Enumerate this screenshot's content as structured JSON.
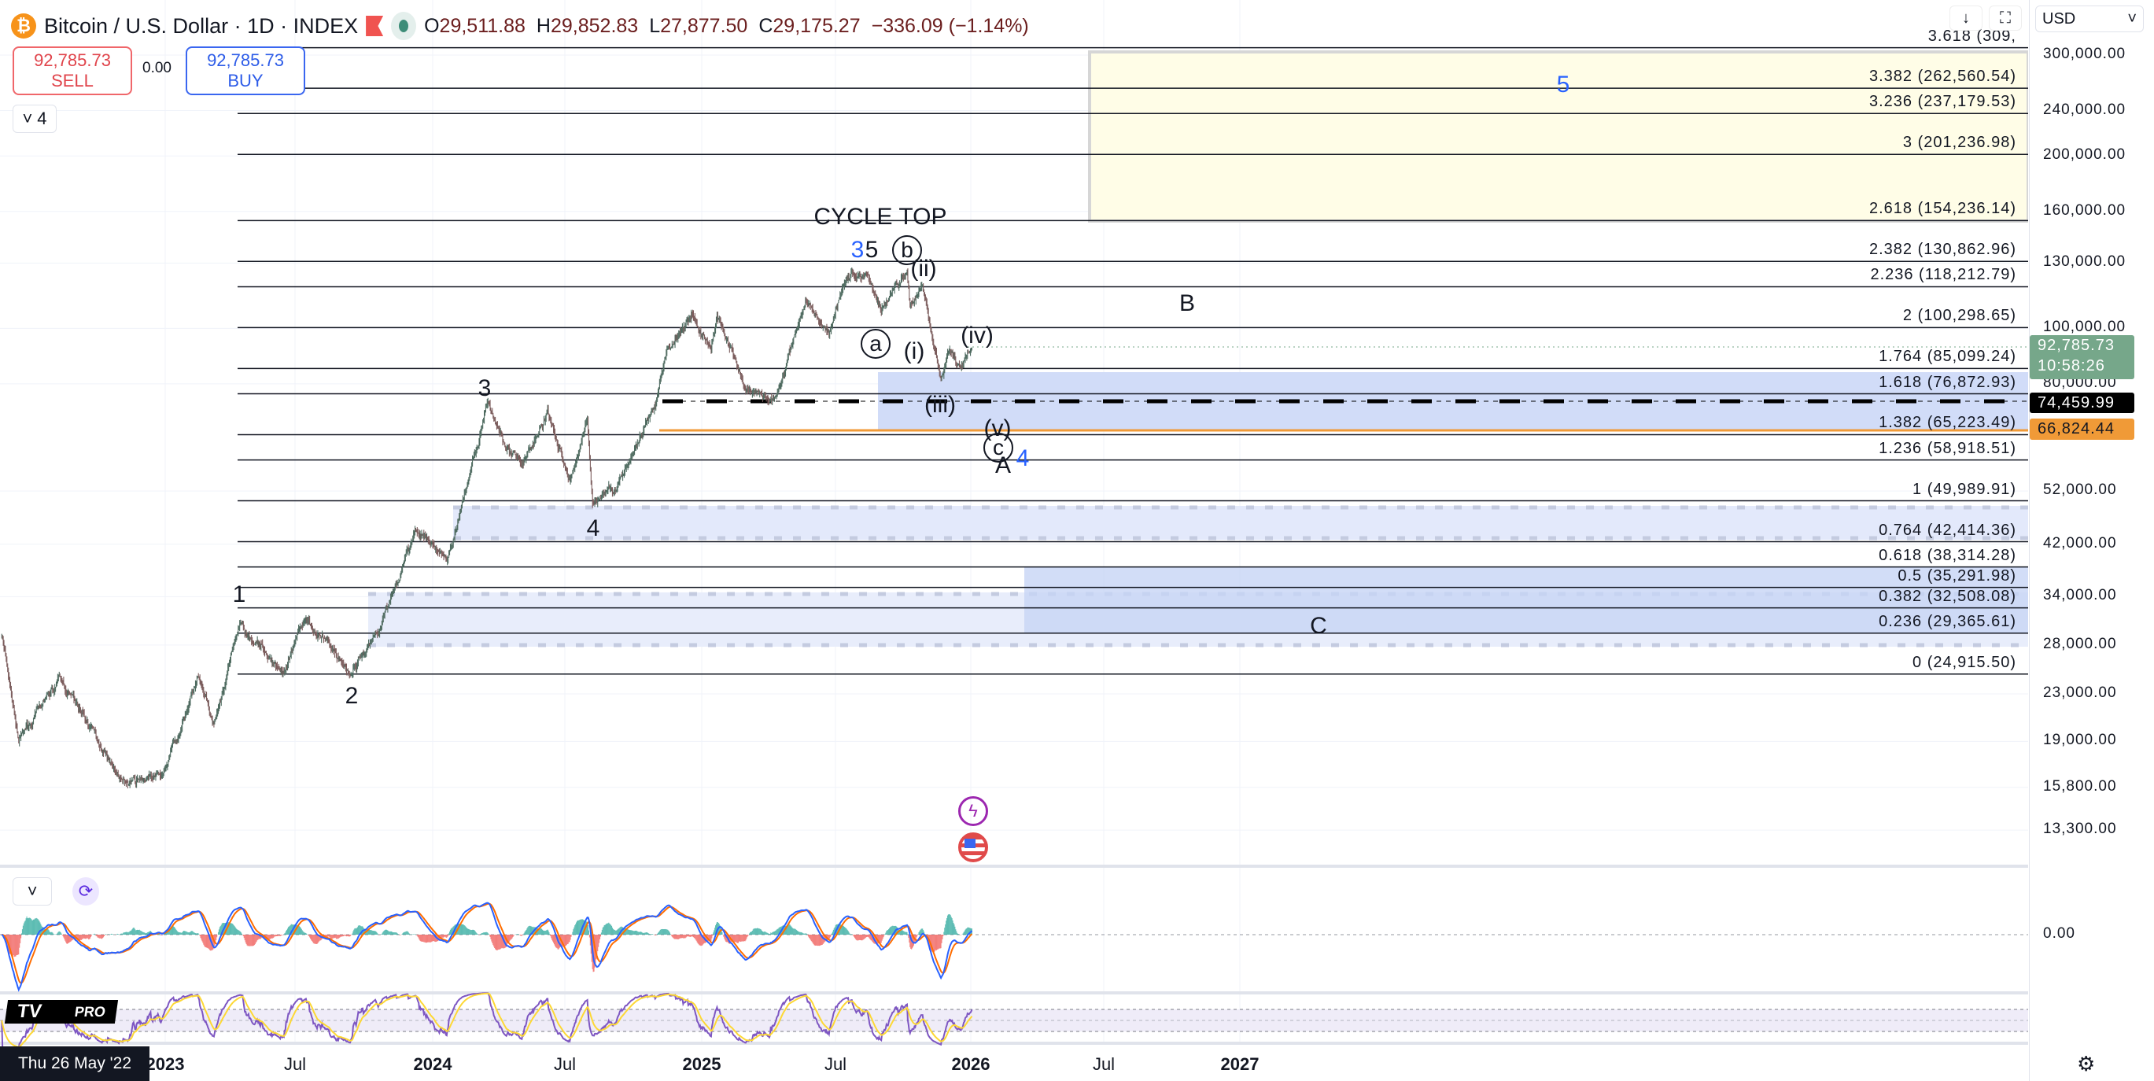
{
  "header": {
    "symbol_icon": "bitcoin-icon",
    "title": "Bitcoin / U.S. Dollar · 1D · INDEX",
    "ohlc": {
      "o_label": "O",
      "o": "29,511.88",
      "h_label": "H",
      "h": "29,852.83",
      "l_label": "L",
      "l": "27,877.50",
      "c_label": "C",
      "c": "29,175.27",
      "change": "−336.09 (−1.14%)"
    }
  },
  "trade": {
    "sell_price": "92,785.73",
    "sell_label": "SELL",
    "spread": "0.00",
    "buy_price": "92,785.73",
    "buy_label": "BUY"
  },
  "indicators_toggle": {
    "count": "4"
  },
  "price_axis": {
    "currency": "USD",
    "scale": "log",
    "labels": [
      300000,
      240000,
      200000,
      160000,
      130000,
      100000,
      80000,
      52000,
      42000,
      34000,
      28000,
      23000,
      19000,
      15800,
      13300
    ],
    "label_text": [
      "300,000.00",
      "240,000.00",
      "200,000.00",
      "160,000.00",
      "130,000.00",
      "100,000.00",
      "80,000.00",
      "52,000.00",
      "42,000.00",
      "34,000.00",
      "28,000.00",
      "23,000.00",
      "19,000.00",
      "15,800.00",
      "13,300.00"
    ],
    "tags": [
      {
        "price": "92,785.73",
        "sub": "10:58:26",
        "color": "#76a78a"
      },
      {
        "price": "74,459.99",
        "color": "#000000"
      },
      {
        "price": "66,824.44",
        "color": "#f09a37"
      }
    ]
  },
  "fib_levels": [
    {
      "label": "3.618 (309,",
      "price": 309000
    },
    {
      "label": "3.382 (262,560.54)",
      "price": 262560.54
    },
    {
      "label": "3.236 (237,179.53)",
      "price": 237179.53
    },
    {
      "label": "3 (201,236.98)",
      "price": 201236.98
    },
    {
      "label": "2.618 (154,236.14)",
      "price": 154236.14
    },
    {
      "label": "2.382 (130,862.96)",
      "price": 130862.96
    },
    {
      "label": "2.236 (118,212.79)",
      "price": 118212.79
    },
    {
      "label": "2 (100,298.65)",
      "price": 100298.65
    },
    {
      "label": "1.764 (85,099.24)",
      "price": 85099.24
    },
    {
      "label": "1.618 (76,872.93)",
      "price": 76872.93
    },
    {
      "label": "1.382 (65,223.49)",
      "price": 65223.49
    },
    {
      "label": "1.236 (58,918.51)",
      "price": 58918.51
    },
    {
      "label": "1 (49,989.91)",
      "price": 49989.91
    },
    {
      "label": "0.764 (42,414.36)",
      "price": 42414.36
    },
    {
      "label": "0.618 (38,314.28)",
      "price": 38314.28
    },
    {
      "label": "0.5 (35,291.98)",
      "price": 35291.98
    },
    {
      "label": "0.382 (32,508.08)",
      "price": 32508.08
    },
    {
      "label": "0.236 (29,365.61)",
      "price": 29365.61
    },
    {
      "label": "0 (24,915.50)",
      "price": 24915.5
    }
  ],
  "wave_labels": {
    "w1": "1",
    "w2": "2",
    "w3": "3",
    "w4": "4",
    "cycle_top": "CYCLE TOP",
    "blue3": "3",
    "w5": "5",
    "b_circ": "b",
    "ii": "(ii)",
    "a_circ": "a",
    "i": "(i)",
    "iv": "(iv)",
    "iii": "(iii)",
    "v": "(v)",
    "c_circ": "c",
    "A": "A",
    "blue4": "4",
    "B": "B",
    "C": "C",
    "blue5": "5"
  },
  "colors": {
    "accent_blue": "#2962ff",
    "zone_yellow": "#fffde7",
    "zone_blue": "#d1dcf8",
    "support_orange": "#f09a37",
    "macd": "#2962ff",
    "signal": "#ff6d00",
    "rsi": "#7e57c2",
    "rsi_ma": "#fdd835"
  },
  "price_path": [
    [
      "2022-05-26",
      29175
    ],
    [
      "2022-06-18",
      19000
    ],
    [
      "2022-08-12",
      24400
    ],
    [
      "2022-09-10",
      21500
    ],
    [
      "2022-11-09",
      16000
    ],
    [
      "2022-12-30",
      16500
    ],
    [
      "2023-02-16",
      24500
    ],
    [
      "2023-03-10",
      20000
    ],
    [
      "2023-04-14",
      30500
    ],
    [
      "2023-06-15",
      25000
    ],
    [
      "2023-07-13",
      31400
    ],
    [
      "2023-09-11",
      25000
    ],
    [
      "2023-10-20",
      30000
    ],
    [
      "2023-12-08",
      44000
    ],
    [
      "2024-01-22",
      39500
    ],
    [
      "2024-03-14",
      73000
    ],
    [
      "2024-05-01",
      57000
    ],
    [
      "2024-06-05",
      71000
    ],
    [
      "2024-07-05",
      54000
    ],
    [
      "2024-07-29",
      69000
    ],
    [
      "2024-08-05",
      50000
    ],
    [
      "2024-09-06",
      53000
    ],
    [
      "2024-10-29",
      72000
    ],
    [
      "2024-11-13",
      90000
    ],
    [
      "2024-12-17",
      107000
    ],
    [
      "2025-01-13",
      91000
    ],
    [
      "2025-01-21",
      106000
    ],
    [
      "2025-02-28",
      79000
    ],
    [
      "2025-04-08",
      75000
    ],
    [
      "2025-05-22",
      111000
    ],
    [
      "2025-06-22",
      99000
    ],
    [
      "2025-07-14",
      123000
    ],
    [
      "2025-08-14",
      124000
    ],
    [
      "2025-09-01",
      108000
    ],
    [
      "2025-10-06",
      126000
    ],
    [
      "2025-10-10",
      110000
    ],
    [
      "2025-10-27",
      116000
    ],
    [
      "2025-11-21",
      80500
    ],
    [
      "2025-12-03",
      93000
    ],
    [
      "2025-12-18",
      85000
    ],
    [
      "2026-01-02",
      92785
    ]
  ],
  "time_axis": {
    "labels": [
      "2023",
      "Jul",
      "2024",
      "Jul",
      "2025",
      "Jul",
      "2026",
      "Jul",
      "2027"
    ],
    "crosshair_date": "Thu 26 May '22"
  },
  "macd": {
    "zero_label": "0.00"
  },
  "logo": {
    "text": "PRO"
  },
  "events": [
    "lightning-event-icon",
    "us-flag-event-icon"
  ]
}
